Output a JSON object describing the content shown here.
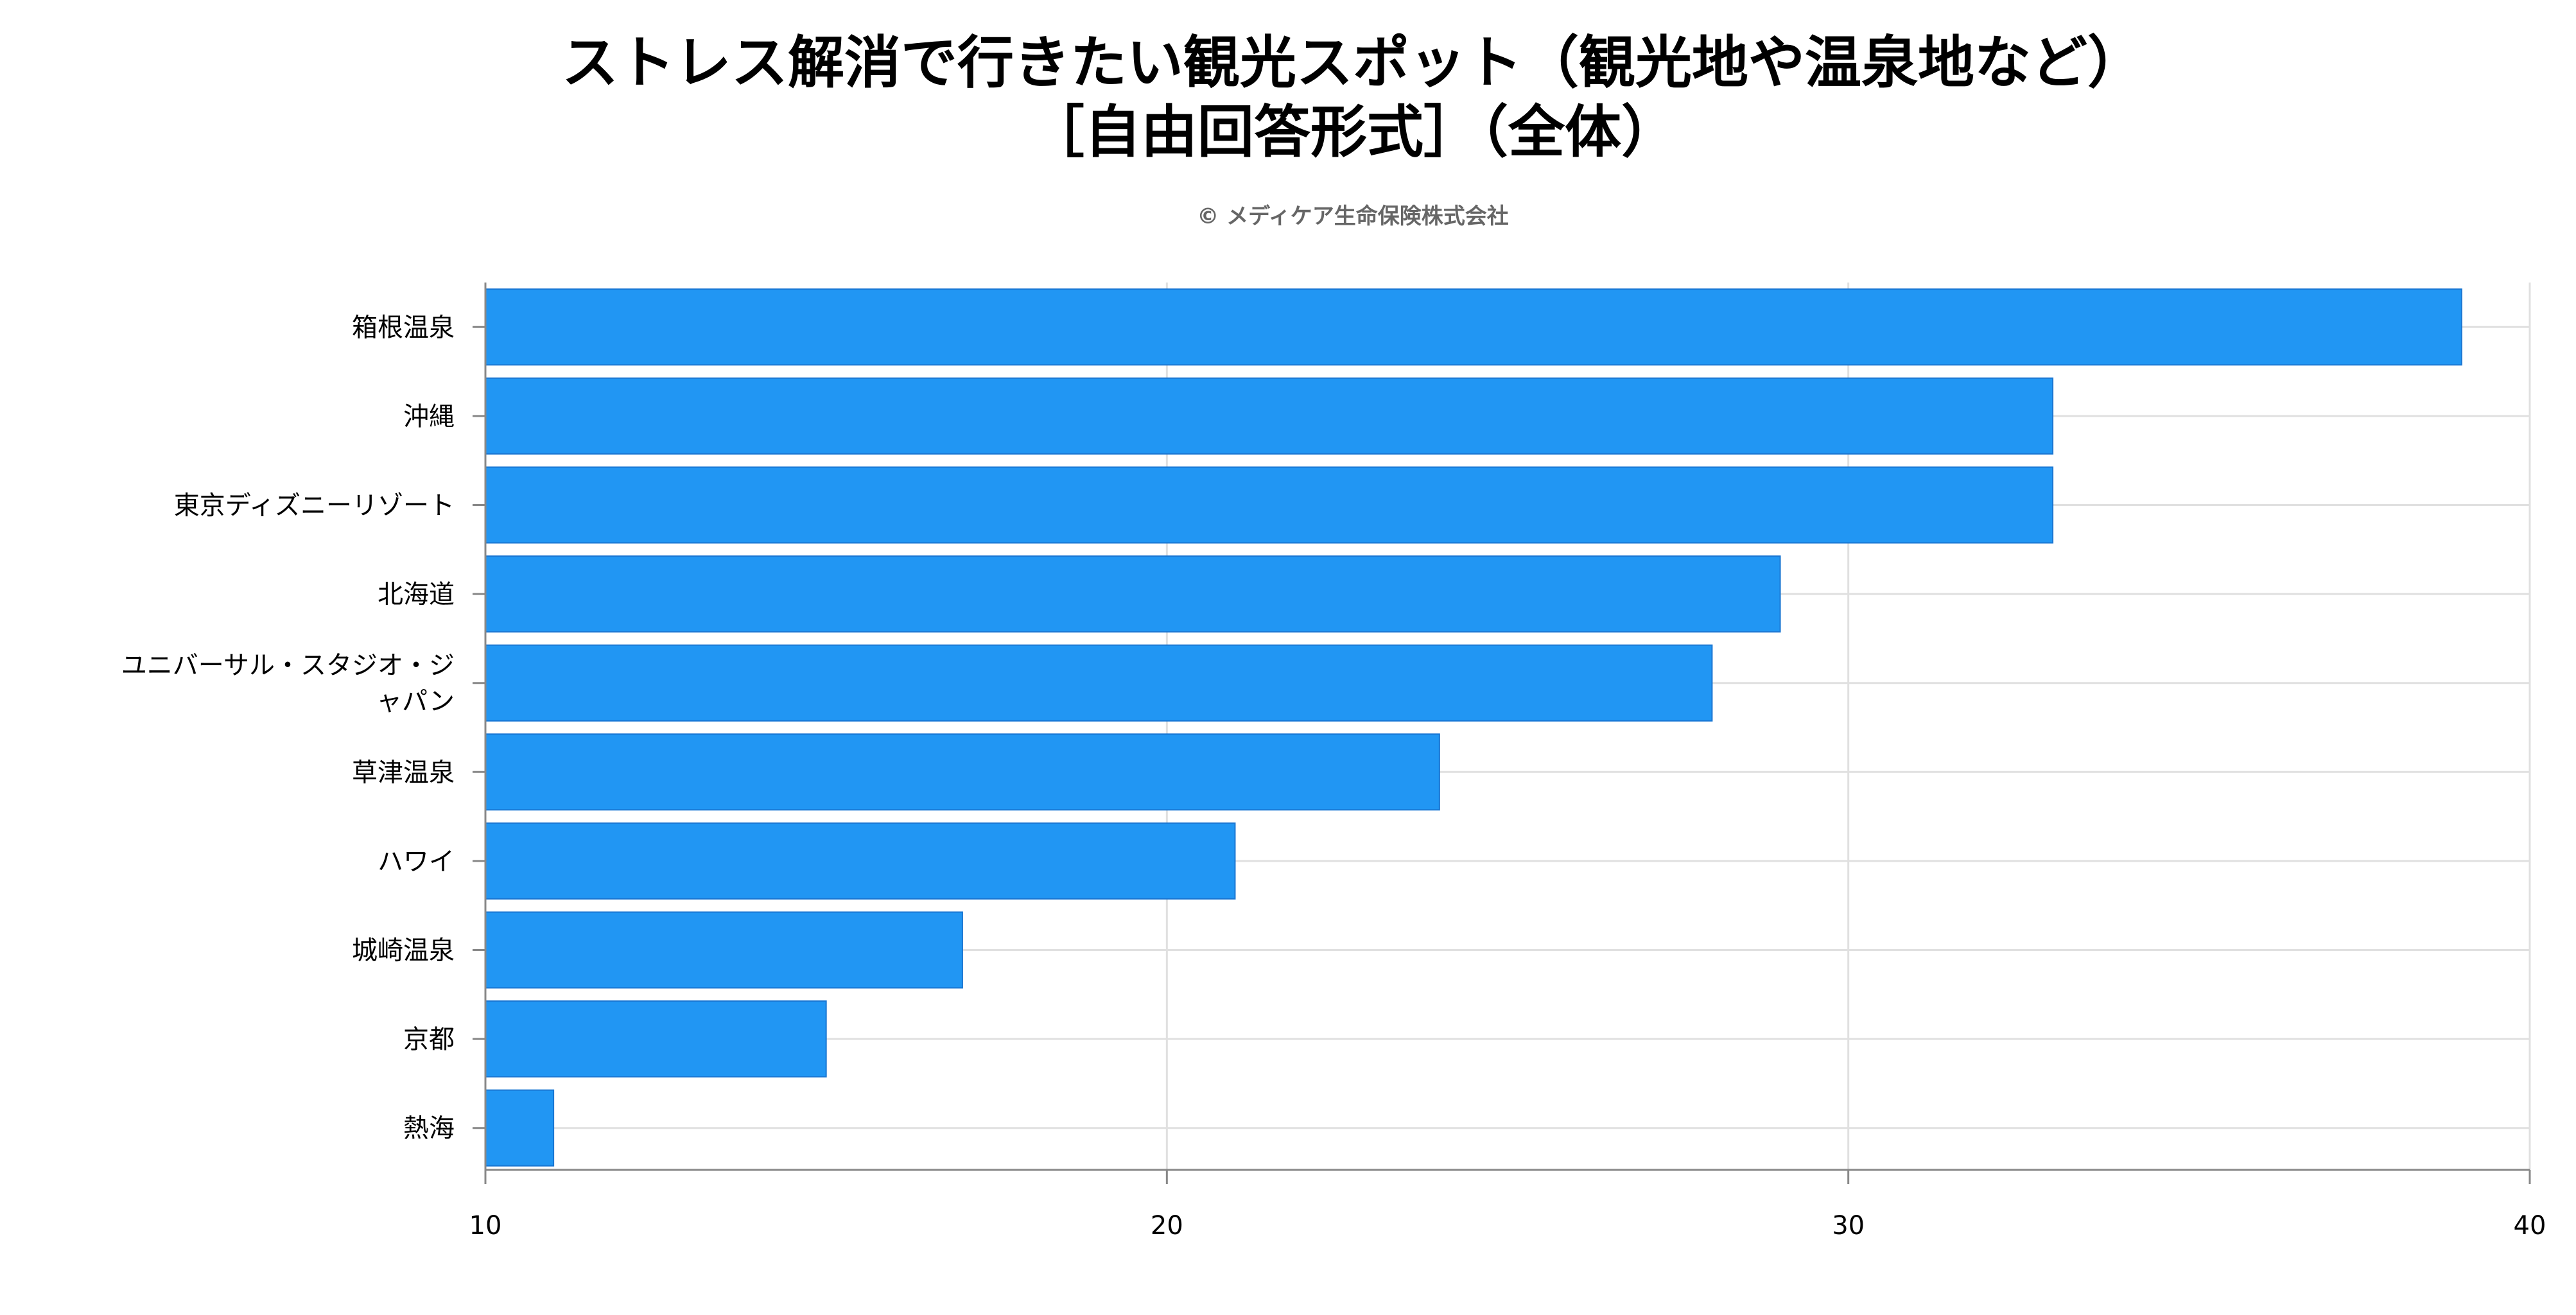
{
  "chart_data": {
    "type": "bar",
    "orientation": "horizontal",
    "title_lines": [
      "ストレス解消で行きたい観光スポット（観光地や温泉地など）",
      "［自由回答形式］（全体）"
    ],
    "credit": "© メディケア生命保険株式会社",
    "categories": [
      [
        "箱根温泉"
      ],
      [
        "沖縄"
      ],
      [
        "東京ディズニーリゾート"
      ],
      [
        "北海道"
      ],
      [
        "ユニバーサル・スタジオ・ジ",
        "ャパン"
      ],
      [
        "草津温泉"
      ],
      [
        "ハワイ"
      ],
      [
        "城崎温泉"
      ],
      [
        "京都"
      ],
      [
        "熱海"
      ]
    ],
    "values": [
      39,
      33,
      33,
      29,
      28,
      24,
      21,
      17,
      15,
      11
    ],
    "xlim": [
      10,
      40
    ],
    "xticks": [
      "10",
      "20",
      "30",
      "40"
    ],
    "xtick_values": [
      10,
      20,
      30,
      40
    ],
    "grid": true,
    "bar_color": "#2196f3",
    "grid_color": "#e0e0e0",
    "axis_color": "#888888"
  }
}
